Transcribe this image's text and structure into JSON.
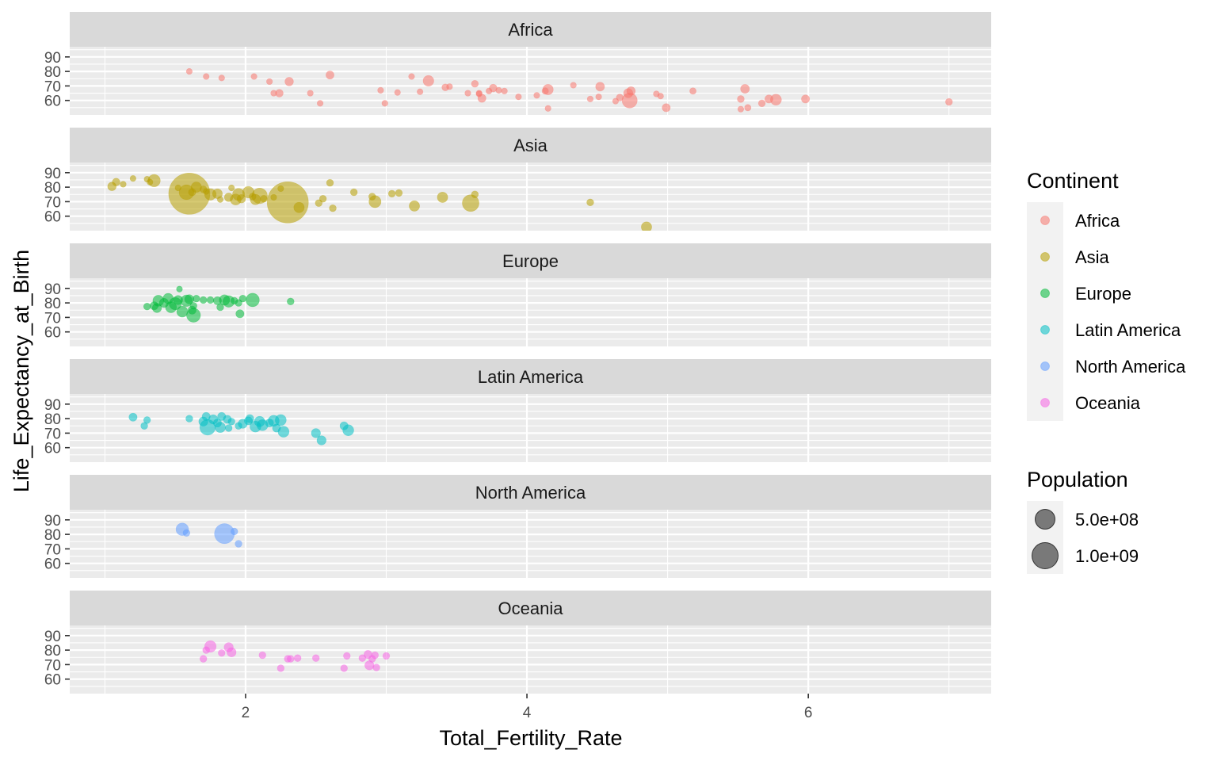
{
  "chart_data": {
    "type": "scatter",
    "facet": "Continent",
    "xlabel": "Total_Fertility_Rate",
    "ylabel": "Life_Expectancy_at_Birth",
    "xlim": [
      0.75,
      7.3
    ],
    "ylim": [
      50,
      97
    ],
    "x_ticks": [
      2,
      4,
      6
    ],
    "y_ticks": [
      60,
      70,
      80,
      90
    ],
    "grid": true,
    "point_alpha": 0.55,
    "colors": {
      "Africa": "#F8766D",
      "Asia": "#B79F00",
      "Europe": "#00BA38",
      "Latin America": "#00BFC4",
      "North America": "#619CFF",
      "Oceania": "#F564E3"
    },
    "legend": {
      "position": "right",
      "color_title": "Continent",
      "color_items": [
        "Africa",
        "Asia",
        "Europe",
        "Latin America",
        "North America",
        "Oceania"
      ],
      "size_title": "Population",
      "size_items": [
        {
          "label": "5.0e+08",
          "value": 500000000
        },
        {
          "label": "1.0e+09",
          "value": 1000000000
        }
      ]
    },
    "panels": [
      {
        "name": "Africa",
        "points": [
          {
            "x": 1.6,
            "y": 80.0,
            "pop": 5
          },
          {
            "x": 1.72,
            "y": 76.5,
            "pop": 15
          },
          {
            "x": 1.83,
            "y": 75.5,
            "pop": 8
          },
          {
            "x": 2.06,
            "y": 76.5,
            "pop": 25
          },
          {
            "x": 2.17,
            "y": 73.0,
            "pop": 12
          },
          {
            "x": 2.2,
            "y": 65.0,
            "pop": 30
          },
          {
            "x": 2.24,
            "y": 65.0,
            "pop": 50
          },
          {
            "x": 2.31,
            "y": 73.0,
            "pop": 60
          },
          {
            "x": 2.46,
            "y": 65.0,
            "pop": 15
          },
          {
            "x": 2.53,
            "y": 58.0,
            "pop": 18
          },
          {
            "x": 2.6,
            "y": 77.5,
            "pop": 55
          },
          {
            "x": 2.96,
            "y": 67.0,
            "pop": 10
          },
          {
            "x": 2.99,
            "y": 58.0,
            "pop": 12
          },
          {
            "x": 3.08,
            "y": 65.5,
            "pop": 10
          },
          {
            "x": 3.18,
            "y": 76.5,
            "pop": 20
          },
          {
            "x": 3.24,
            "y": 66.0,
            "pop": 8
          },
          {
            "x": 3.3,
            "y": 73.5,
            "pop": 95
          },
          {
            "x": 3.42,
            "y": 69.0,
            "pop": 40
          },
          {
            "x": 3.45,
            "y": 69.5,
            "pop": 25
          },
          {
            "x": 3.58,
            "y": 65.0,
            "pop": 30
          },
          {
            "x": 3.63,
            "y": 71.5,
            "pop": 40
          },
          {
            "x": 3.66,
            "y": 64.5,
            "pop": 15
          },
          {
            "x": 3.66,
            "y": 65.0,
            "pop": 8
          },
          {
            "x": 3.68,
            "y": 61.5,
            "pop": 55
          },
          {
            "x": 3.73,
            "y": 66.5,
            "pop": 20
          },
          {
            "x": 3.76,
            "y": 68.5,
            "pop": 50
          },
          {
            "x": 3.8,
            "y": 67.0,
            "pop": 30
          },
          {
            "x": 3.84,
            "y": 66.5,
            "pop": 12
          },
          {
            "x": 3.94,
            "y": 62.5,
            "pop": 30
          },
          {
            "x": 4.07,
            "y": 63.5,
            "pop": 20
          },
          {
            "x": 4.13,
            "y": 66.5,
            "pop": 35
          },
          {
            "x": 4.15,
            "y": 67.5,
            "pop": 90
          },
          {
            "x": 4.15,
            "y": 54.5,
            "pop": 20
          },
          {
            "x": 4.33,
            "y": 70.5,
            "pop": 20
          },
          {
            "x": 4.45,
            "y": 61.0,
            "pop": 25
          },
          {
            "x": 4.51,
            "y": 62.5,
            "pop": 30
          },
          {
            "x": 4.52,
            "y": 69.5,
            "pop": 65
          },
          {
            "x": 4.63,
            "y": 59.5,
            "pop": 20
          },
          {
            "x": 4.66,
            "y": 62.0,
            "pop": 40
          },
          {
            "x": 4.72,
            "y": 65.0,
            "pop": 70
          },
          {
            "x": 4.73,
            "y": 60.0,
            "pop": 190
          },
          {
            "x": 4.74,
            "y": 66.5,
            "pop": 60
          },
          {
            "x": 4.92,
            "y": 64.5,
            "pop": 30
          },
          {
            "x": 4.95,
            "y": 63.0,
            "pop": 25
          },
          {
            "x": 4.99,
            "y": 55.0,
            "pop": 55
          },
          {
            "x": 5.18,
            "y": 66.5,
            "pop": 35
          },
          {
            "x": 5.52,
            "y": 61.0,
            "pop": 40
          },
          {
            "x": 5.52,
            "y": 54.0,
            "pop": 30
          },
          {
            "x": 5.55,
            "y": 68.0,
            "pop": 65
          },
          {
            "x": 5.57,
            "y": 55.0,
            "pop": 35
          },
          {
            "x": 5.67,
            "y": 58.0,
            "pop": 40
          },
          {
            "x": 5.72,
            "y": 61.0,
            "pop": 55
          },
          {
            "x": 5.77,
            "y": 60.5,
            "pop": 100
          },
          {
            "x": 5.98,
            "y": 61.0,
            "pop": 55
          },
          {
            "x": 7.0,
            "y": 59.0,
            "pop": 40
          }
        ]
      },
      {
        "name": "Asia",
        "points": [
          {
            "x": 1.05,
            "y": 80.5,
            "pop": 60
          },
          {
            "x": 1.08,
            "y": 83.5,
            "pop": 50
          },
          {
            "x": 1.13,
            "y": 82.0,
            "pop": 15
          },
          {
            "x": 1.2,
            "y": 86.0,
            "pop": 25
          },
          {
            "x": 1.3,
            "y": 85.5,
            "pop": 8
          },
          {
            "x": 1.32,
            "y": 83.5,
            "pop": 30
          },
          {
            "x": 1.35,
            "y": 84.5,
            "pop": 125
          },
          {
            "x": 1.52,
            "y": 79.5,
            "pop": 25
          },
          {
            "x": 1.58,
            "y": 76.5,
            "pop": 180
          },
          {
            "x": 1.6,
            "y": 75.5,
            "pop": 1400
          },
          {
            "x": 1.62,
            "y": 76.5,
            "pop": 45
          },
          {
            "x": 1.65,
            "y": 80.0,
            "pop": 90
          },
          {
            "x": 1.7,
            "y": 78.5,
            "pop": 40
          },
          {
            "x": 1.72,
            "y": 77.0,
            "pop": 25
          },
          {
            "x": 1.75,
            "y": 75.0,
            "pop": 110
          },
          {
            "x": 1.8,
            "y": 75.5,
            "pop": 80
          },
          {
            "x": 1.82,
            "y": 71.5,
            "pop": 25
          },
          {
            "x": 1.88,
            "y": 73.0,
            "pop": 60
          },
          {
            "x": 1.9,
            "y": 79.5,
            "pop": 25
          },
          {
            "x": 1.93,
            "y": 71.5,
            "pop": 100
          },
          {
            "x": 1.95,
            "y": 75.0,
            "pop": 120
          },
          {
            "x": 1.97,
            "y": 72.0,
            "pop": 60
          },
          {
            "x": 2.02,
            "y": 76.5,
            "pop": 110
          },
          {
            "x": 2.05,
            "y": 73.5,
            "pop": 40
          },
          {
            "x": 2.07,
            "y": 71.5,
            "pop": 90
          },
          {
            "x": 2.1,
            "y": 74.0,
            "pop": 200
          },
          {
            "x": 2.13,
            "y": 72.0,
            "pop": 40
          },
          {
            "x": 2.2,
            "y": 73.0,
            "pop": 15
          },
          {
            "x": 2.25,
            "y": 79.0,
            "pop": 15
          },
          {
            "x": 2.3,
            "y": 69.5,
            "pop": 1400
          },
          {
            "x": 2.38,
            "y": 66.0,
            "pop": 90
          },
          {
            "x": 2.52,
            "y": 69.0,
            "pop": 40
          },
          {
            "x": 2.55,
            "y": 72.0,
            "pop": 40
          },
          {
            "x": 2.6,
            "y": 83.0,
            "pop": 40
          },
          {
            "x": 2.62,
            "y": 65.5,
            "pop": 40
          },
          {
            "x": 2.77,
            "y": 76.5,
            "pop": 40
          },
          {
            "x": 2.9,
            "y": 73.5,
            "pop": 40
          },
          {
            "x": 2.92,
            "y": 70.0,
            "pop": 120
          },
          {
            "x": 3.04,
            "y": 75.5,
            "pop": 40
          },
          {
            "x": 3.09,
            "y": 76.0,
            "pop": 40
          },
          {
            "x": 3.2,
            "y": 67.0,
            "pop": 90
          },
          {
            "x": 3.4,
            "y": 73.0,
            "pop": 90
          },
          {
            "x": 3.6,
            "y": 69.0,
            "pop": 230
          },
          {
            "x": 3.63,
            "y": 75.0,
            "pop": 40
          },
          {
            "x": 4.45,
            "y": 69.5,
            "pop": 40
          },
          {
            "x": 4.85,
            "y": 52.5,
            "pop": 90
          }
        ]
      },
      {
        "name": "Europe",
        "points": [
          {
            "x": 1.3,
            "y": 77.5,
            "pop": 40
          },
          {
            "x": 1.35,
            "y": 78.0,
            "pop": 55
          },
          {
            "x": 1.37,
            "y": 76.5,
            "pop": 70
          },
          {
            "x": 1.38,
            "y": 81.5,
            "pop": 100
          },
          {
            "x": 1.42,
            "y": 80.0,
            "pop": 70
          },
          {
            "x": 1.45,
            "y": 83.0,
            "pop": 90
          },
          {
            "x": 1.47,
            "y": 77.0,
            "pop": 100
          },
          {
            "x": 1.5,
            "y": 79.5,
            "pop": 125
          },
          {
            "x": 1.52,
            "y": 82.0,
            "pop": 70
          },
          {
            "x": 1.53,
            "y": 89.5,
            "pop": 25
          },
          {
            "x": 1.55,
            "y": 74.0,
            "pop": 100
          },
          {
            "x": 1.58,
            "y": 81.5,
            "pop": 110
          },
          {
            "x": 1.6,
            "y": 82.5,
            "pop": 70
          },
          {
            "x": 1.62,
            "y": 75.0,
            "pop": 55
          },
          {
            "x": 1.63,
            "y": 78.0,
            "pop": 40
          },
          {
            "x": 1.63,
            "y": 71.5,
            "pop": 160
          },
          {
            "x": 1.65,
            "y": 83.0,
            "pop": 40
          },
          {
            "x": 1.7,
            "y": 82.0,
            "pop": 40
          },
          {
            "x": 1.75,
            "y": 82.0,
            "pop": 40
          },
          {
            "x": 1.8,
            "y": 81.5,
            "pop": 55
          },
          {
            "x": 1.82,
            "y": 77.0,
            "pop": 40
          },
          {
            "x": 1.85,
            "y": 82.0,
            "pop": 90
          },
          {
            "x": 1.88,
            "y": 81.0,
            "pop": 110
          },
          {
            "x": 1.92,
            "y": 81.5,
            "pop": 40
          },
          {
            "x": 1.95,
            "y": 80.0,
            "pop": 40
          },
          {
            "x": 1.96,
            "y": 72.5,
            "pop": 55
          },
          {
            "x": 1.98,
            "y": 83.0,
            "pop": 40
          },
          {
            "x": 2.05,
            "y": 82.0,
            "pop": 150
          },
          {
            "x": 2.32,
            "y": 81.0,
            "pop": 40
          }
        ]
      },
      {
        "name": "Latin America",
        "points": [
          {
            "x": 1.2,
            "y": 81.0,
            "pop": 55
          },
          {
            "x": 1.28,
            "y": 75.0,
            "pop": 40
          },
          {
            "x": 1.3,
            "y": 79.0,
            "pop": 40
          },
          {
            "x": 1.6,
            "y": 80.0,
            "pop": 40
          },
          {
            "x": 1.7,
            "y": 78.0,
            "pop": 70
          },
          {
            "x": 1.72,
            "y": 81.5,
            "pop": 55
          },
          {
            "x": 1.73,
            "y": 74.0,
            "pop": 200
          },
          {
            "x": 1.77,
            "y": 79.5,
            "pop": 70
          },
          {
            "x": 1.8,
            "y": 77.0,
            "pop": 55
          },
          {
            "x": 1.82,
            "y": 74.0,
            "pop": 90
          },
          {
            "x": 1.83,
            "y": 81.5,
            "pop": 55
          },
          {
            "x": 1.87,
            "y": 79.5,
            "pop": 55
          },
          {
            "x": 1.9,
            "y": 78.0,
            "pop": 40
          },
          {
            "x": 1.88,
            "y": 73.5,
            "pop": 40
          },
          {
            "x": 1.95,
            "y": 75.0,
            "pop": 40
          },
          {
            "x": 1.98,
            "y": 76.5,
            "pop": 70
          },
          {
            "x": 2.02,
            "y": 78.5,
            "pop": 55
          },
          {
            "x": 2.03,
            "y": 80.0,
            "pop": 55
          },
          {
            "x": 2.07,
            "y": 74.5,
            "pop": 100
          },
          {
            "x": 2.1,
            "y": 78.0,
            "pop": 90
          },
          {
            "x": 2.12,
            "y": 75.5,
            "pop": 100
          },
          {
            "x": 2.17,
            "y": 77.0,
            "pop": 55
          },
          {
            "x": 2.2,
            "y": 78.5,
            "pop": 100
          },
          {
            "x": 2.22,
            "y": 73.5,
            "pop": 55
          },
          {
            "x": 2.25,
            "y": 79.0,
            "pop": 100
          },
          {
            "x": 2.27,
            "y": 71.0,
            "pop": 100
          },
          {
            "x": 2.5,
            "y": 70.0,
            "pop": 70
          },
          {
            "x": 2.54,
            "y": 65.0,
            "pop": 70
          },
          {
            "x": 2.7,
            "y": 75.0,
            "pop": 55
          },
          {
            "x": 2.73,
            "y": 72.0,
            "pop": 100
          }
        ]
      },
      {
        "name": "North America",
        "points": [
          {
            "x": 1.55,
            "y": 83.5,
            "pop": 130
          },
          {
            "x": 1.58,
            "y": 81.0,
            "pop": 40
          },
          {
            "x": 1.85,
            "y": 80.5,
            "pop": 330
          },
          {
            "x": 1.92,
            "y": 82.0,
            "pop": 40
          },
          {
            "x": 1.95,
            "y": 73.5,
            "pop": 40
          }
        ]
      },
      {
        "name": "Oceania",
        "points": [
          {
            "x": 1.7,
            "y": 74.0,
            "pop": 40
          },
          {
            "x": 1.72,
            "y": 80.0,
            "pop": 40
          },
          {
            "x": 1.75,
            "y": 82.5,
            "pop": 110
          },
          {
            "x": 1.83,
            "y": 78.0,
            "pop": 40
          },
          {
            "x": 1.88,
            "y": 82.0,
            "pop": 70
          },
          {
            "x": 1.9,
            "y": 78.5,
            "pop": 70
          },
          {
            "x": 2.12,
            "y": 76.5,
            "pop": 40
          },
          {
            "x": 2.25,
            "y": 67.5,
            "pop": 40
          },
          {
            "x": 2.3,
            "y": 74.0,
            "pop": 40
          },
          {
            "x": 2.32,
            "y": 74.0,
            "pop": 40
          },
          {
            "x": 2.37,
            "y": 74.5,
            "pop": 40
          },
          {
            "x": 2.5,
            "y": 74.5,
            "pop": 40
          },
          {
            "x": 2.7,
            "y": 67.5,
            "pop": 40
          },
          {
            "x": 2.72,
            "y": 76.0,
            "pop": 40
          },
          {
            "x": 2.83,
            "y": 74.5,
            "pop": 40
          },
          {
            "x": 2.87,
            "y": 77.0,
            "pop": 55
          },
          {
            "x": 2.88,
            "y": 69.5,
            "pop": 70
          },
          {
            "x": 2.9,
            "y": 74.0,
            "pop": 40
          },
          {
            "x": 2.92,
            "y": 76.5,
            "pop": 40
          },
          {
            "x": 2.93,
            "y": 68.0,
            "pop": 40
          },
          {
            "x": 3.0,
            "y": 76.0,
            "pop": 40
          }
        ]
      }
    ]
  }
}
